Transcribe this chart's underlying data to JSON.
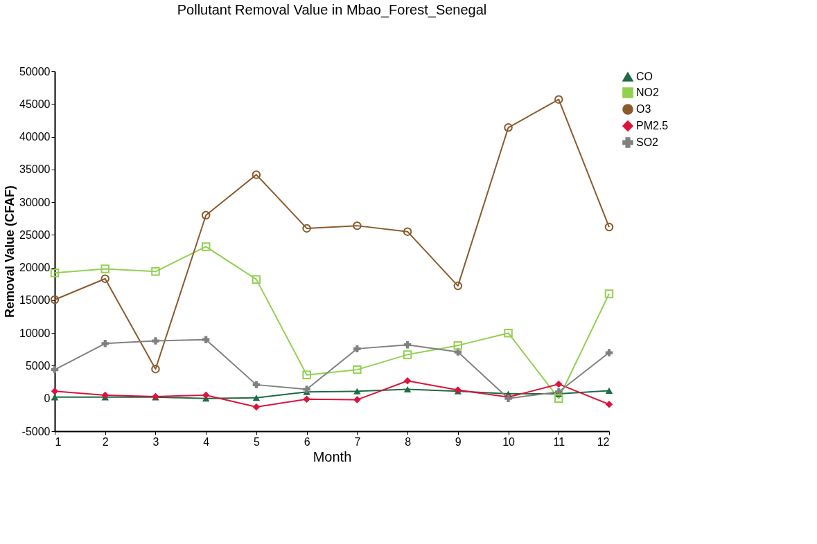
{
  "chart_data": {
    "type": "line",
    "title": "Pollutant Removal Value in Mbao_Forest_Senegal",
    "xlabel": "Month",
    "ylabel": "Removal Value (CFAF)",
    "x": [
      1,
      2,
      3,
      4,
      5,
      6,
      7,
      8,
      9,
      10,
      11,
      12
    ],
    "xlim": [
      1,
      12
    ],
    "xticks": [
      1,
      2,
      3,
      4,
      5,
      6,
      7,
      8,
      9,
      10,
      11,
      12
    ],
    "ylim": [
      -5000,
      50000
    ],
    "yticks": [
      -5000,
      0,
      5000,
      10000,
      15000,
      20000,
      25000,
      30000,
      35000,
      40000,
      45000,
      50000
    ],
    "grid": false,
    "legend": "right",
    "series": [
      {
        "name": "CO",
        "color": "#1e6b45",
        "marker": "triangle",
        "values": [
          200,
          200,
          200,
          0,
          100,
          1000,
          1100,
          1400,
          1100,
          700,
          700,
          1200
        ]
      },
      {
        "name": "NO2",
        "color": "#92d050",
        "marker": "square",
        "values": [
          19200,
          19800,
          19400,
          23200,
          18200,
          3600,
          4400,
          6700,
          8100,
          10000,
          0,
          16000
        ]
      },
      {
        "name": "O3",
        "color": "#8b5a2b",
        "marker": "circle",
        "values": [
          15100,
          18300,
          4500,
          28000,
          34200,
          26000,
          26400,
          25500,
          17200,
          41400,
          45700,
          26200
        ]
      },
      {
        "name": "PM2.5",
        "color": "#dc143c",
        "marker": "diamond",
        "values": [
          1100,
          500,
          300,
          500,
          -1300,
          -100,
          -200,
          2700,
          1300,
          200,
          2200,
          -900
        ]
      },
      {
        "name": "SO2",
        "color": "#808080",
        "marker": "cross",
        "values": [
          4400,
          8400,
          8800,
          9000,
          2100,
          1400,
          7600,
          8200,
          7100,
          0,
          1000,
          7000
        ]
      }
    ]
  }
}
